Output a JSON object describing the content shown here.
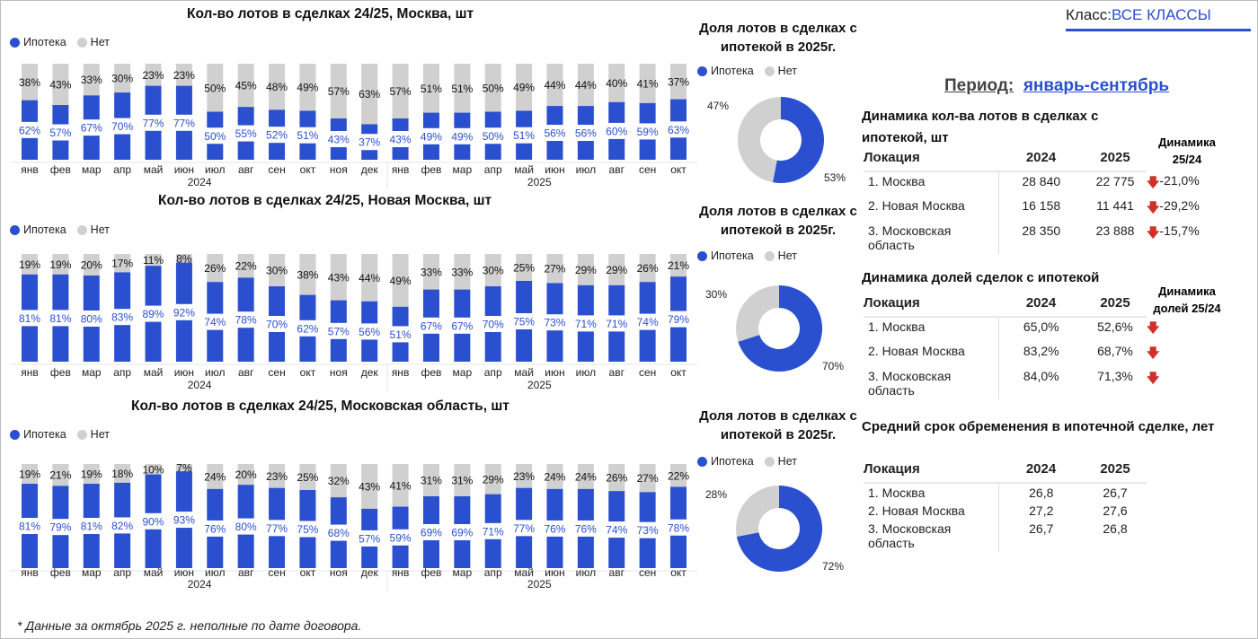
{
  "header": {
    "class_label": "Класс:",
    "class_value": "ВСЕ КЛАССЫ",
    "period_label": "Период:",
    "period_value": "январь-сентябрь"
  },
  "legend": {
    "ipoteka": "Ипотека",
    "net": "Нет"
  },
  "colors": {
    "blue": "#2a4fcf",
    "gray": "#d0d0d0",
    "red": "#d0302a"
  },
  "chart_data": [
    {
      "type": "bar",
      "title": "Кол-во лотов в сделках 24/25, Москва, шт",
      "categories": [
        "янв",
        "фев",
        "мар",
        "апр",
        "май",
        "июн",
        "июл",
        "авг",
        "сен",
        "окт",
        "ноя",
        "дек",
        "янв",
        "фев",
        "мар",
        "апр",
        "май",
        "июн",
        "июл",
        "авг",
        "сен",
        "окт"
      ],
      "years": [
        "2024",
        "2025"
      ],
      "series": [
        {
          "name": "Ипотека",
          "values": [
            62,
            57,
            67,
            70,
            77,
            77,
            50,
            55,
            52,
            51,
            43,
            37,
            43,
            49,
            49,
            50,
            51,
            56,
            56,
            60,
            59,
            63
          ]
        },
        {
          "name": "Нет",
          "values": [
            38,
            43,
            33,
            30,
            23,
            23,
            50,
            45,
            48,
            49,
            57,
            63,
            57,
            51,
            51,
            50,
            49,
            44,
            44,
            40,
            41,
            37
          ]
        }
      ],
      "ylim": [
        0,
        100
      ]
    },
    {
      "type": "bar",
      "title": "Кол-во лотов в сделках 24/25, Новая Москва, шт",
      "categories": [
        "янв",
        "фев",
        "мар",
        "апр",
        "май",
        "июн",
        "июл",
        "авг",
        "сен",
        "окт",
        "ноя",
        "дек",
        "янв",
        "фев",
        "мар",
        "апр",
        "май",
        "июн",
        "июл",
        "авг",
        "сен",
        "окт"
      ],
      "years": [
        "2024",
        "2025"
      ],
      "series": [
        {
          "name": "Ипотека",
          "values": [
            81,
            81,
            80,
            83,
            89,
            92,
            74,
            78,
            70,
            62,
            57,
            56,
            51,
            67,
            67,
            70,
            75,
            73,
            71,
            71,
            74,
            79
          ]
        },
        {
          "name": "Нет",
          "values": [
            19,
            19,
            20,
            17,
            11,
            8,
            26,
            22,
            30,
            38,
            43,
            44,
            49,
            33,
            33,
            30,
            25,
            27,
            29,
            29,
            26,
            21
          ]
        }
      ],
      "ylim": [
        0,
        100
      ]
    },
    {
      "type": "bar",
      "title": "Кол-во лотов в сделках 24/25, Московская область, шт",
      "categories": [
        "янв",
        "фев",
        "мар",
        "апр",
        "май",
        "июн",
        "июл",
        "авг",
        "сен",
        "окт",
        "ноя",
        "дек",
        "янв",
        "фев",
        "мар",
        "апр",
        "май",
        "июн",
        "июл",
        "авг",
        "сен",
        "окт"
      ],
      "years": [
        "2024",
        "2025"
      ],
      "series": [
        {
          "name": "Ипотека",
          "values": [
            81,
            79,
            81,
            82,
            90,
            93,
            76,
            80,
            77,
            75,
            68,
            57,
            59,
            69,
            69,
            71,
            77,
            76,
            76,
            74,
            73,
            78
          ]
        },
        {
          "name": "Нет",
          "values": [
            19,
            21,
            19,
            18,
            10,
            7,
            24,
            20,
            23,
            25,
            32,
            43,
            41,
            31,
            31,
            29,
            23,
            24,
            24,
            26,
            27,
            22
          ]
        }
      ],
      "ylim": [
        0,
        100
      ]
    },
    {
      "type": "pie",
      "title": "Доля лотов в сделках с ипотекой в 2025г.",
      "labels": [
        "Ипотека",
        "Нет"
      ],
      "values": [
        53,
        47
      ],
      "value_labels": [
        "53%",
        "47%"
      ]
    },
    {
      "type": "pie",
      "title": "Доля лотов в сделках с ипотекой в 2025г.",
      "labels": [
        "Ипотека",
        "Нет"
      ],
      "values": [
        70,
        30
      ],
      "value_labels": [
        "70%",
        "30%"
      ]
    },
    {
      "type": "pie",
      "title": "Доля лотов в сделках с ипотекой в 2025г.",
      "labels": [
        "Ипотека",
        "Нет"
      ],
      "values": [
        72,
        28
      ],
      "value_labels": [
        "72%",
        "28%"
      ]
    }
  ],
  "tables": [
    {
      "title": "Динамика кол-ва лотов в сделках с ипотекой, шт",
      "cols": [
        "Локация",
        "2024",
        "2025"
      ],
      "dyn_header": "Динамика 25/24",
      "rows": [
        [
          "1. Москва",
          "28 840",
          "22 775",
          "-21,0%"
        ],
        [
          "2. Новая Москва",
          "16 158",
          "11 441",
          "-29,2%"
        ],
        [
          "3. Московская область",
          "28 350",
          "23 888",
          "-15,7%"
        ]
      ]
    },
    {
      "title": "Динамика долей сделок с ипотекой",
      "cols": [
        "Локация",
        "2024",
        "2025"
      ],
      "dyn_header": "Динамика долей 25/24",
      "rows": [
        [
          "1. Москва",
          "65,0%",
          "52,6%",
          ""
        ],
        [
          "2. Новая Москва",
          "83,2%",
          "68,7%",
          ""
        ],
        [
          "3. Московская область",
          "84,0%",
          "71,3%",
          ""
        ]
      ]
    },
    {
      "title": "Средний срок обременения в ипотечной сделке, лет",
      "cols": [
        "Локация",
        "2024",
        "2025"
      ],
      "rows": [
        [
          "1. Москва",
          "26,8",
          "26,7"
        ],
        [
          "2. Новая Москва",
          "27,2",
          "27,6"
        ],
        [
          "3. Московская область",
          "26,7",
          "26,8"
        ]
      ]
    }
  ],
  "footnote": "* Данные за октябрь 2025 г. неполные по дате договора."
}
